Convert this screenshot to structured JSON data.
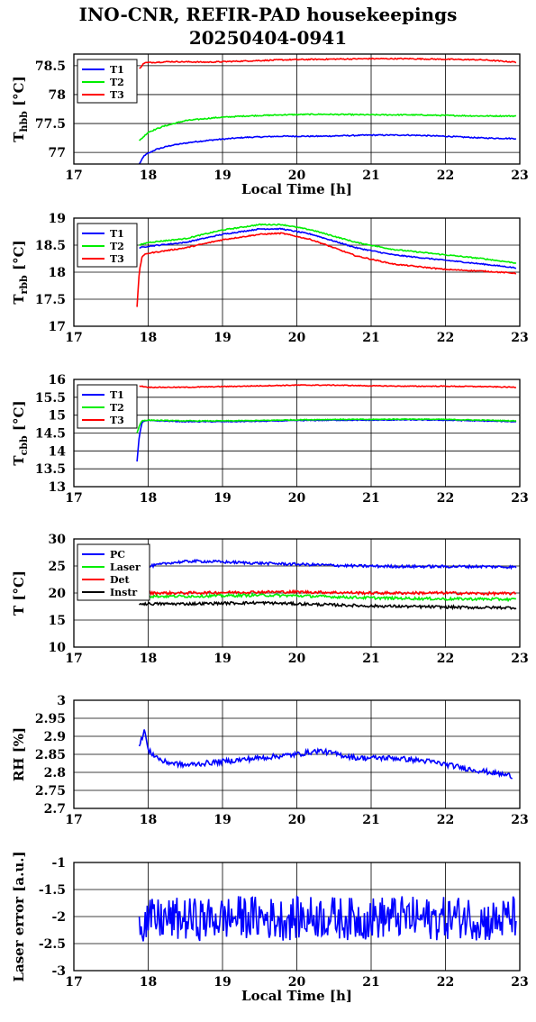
{
  "title": "INO-CNR, REFIR-PAD housekeepings",
  "subtitle": "20250404-0941",
  "colors": {
    "blue": "#0000ff",
    "green": "#00ee00",
    "red": "#ff0000",
    "black": "#000000"
  },
  "chart_data": [
    {
      "type": "line",
      "ylabel_main": "T",
      "ylabel_sub": "hbb",
      "ylabel_unit": "[°C]",
      "xlabel": "Local Time [h]",
      "xlim": [
        17,
        23
      ],
      "ylim": [
        76.8,
        78.7
      ],
      "xticks": [
        "17",
        "18",
        "19",
        "20",
        "21",
        "22",
        "23"
      ],
      "yticks": [
        {
          "v": 77,
          "label": "77"
        },
        {
          "v": 77.5,
          "label": "77.5"
        },
        {
          "v": 78,
          "label": "78"
        },
        {
          "v": 78.5,
          "label": "78.5"
        }
      ],
      "grid": true,
      "legend": "top-left",
      "noise": 0.02,
      "series": [
        {
          "name": "T1",
          "color": "#0000ff",
          "x": [
            17.88,
            17.95,
            18.1,
            18.3,
            18.6,
            18.9,
            19.3,
            19.8,
            20.3,
            21.0,
            21.5,
            22.0,
            22.5,
            22.95
          ],
          "y": [
            76.8,
            76.95,
            77.05,
            77.12,
            77.18,
            77.22,
            77.26,
            77.28,
            77.28,
            77.3,
            77.3,
            77.28,
            77.25,
            77.24
          ]
        },
        {
          "name": "T2",
          "color": "#00ee00",
          "x": [
            17.88,
            18.0,
            18.2,
            18.5,
            18.9,
            19.3,
            19.8,
            20.3,
            21.0,
            21.5,
            22.0,
            22.5,
            22.95
          ],
          "y": [
            77.2,
            77.35,
            77.45,
            77.55,
            77.6,
            77.63,
            77.65,
            77.66,
            77.65,
            77.65,
            77.64,
            77.63,
            77.63
          ]
        },
        {
          "name": "T3",
          "color": "#ff0000",
          "x": [
            17.88,
            17.95,
            18.3,
            18.8,
            19.3,
            19.8,
            20.3,
            21.0,
            21.5,
            22.0,
            22.5,
            22.95
          ],
          "y": [
            78.45,
            78.55,
            78.57,
            78.56,
            78.58,
            78.6,
            78.61,
            78.62,
            78.62,
            78.61,
            78.6,
            78.56
          ]
        }
      ]
    },
    {
      "type": "line",
      "ylabel_main": "T",
      "ylabel_sub": "rbb",
      "ylabel_unit": "[°C]",
      "xlabel": "",
      "xlim": [
        17,
        23
      ],
      "ylim": [
        17,
        19
      ],
      "xticks": [
        "17",
        "18",
        "19",
        "20",
        "21",
        "22",
        "23"
      ],
      "yticks": [
        {
          "v": 17,
          "label": "17"
        },
        {
          "v": 17.5,
          "label": "17.5"
        },
        {
          "v": 18,
          "label": "18"
        },
        {
          "v": 18.5,
          "label": "18.5"
        },
        {
          "v": 19,
          "label": "19"
        }
      ],
      "grid": true,
      "legend": "top-left",
      "noise": 0.02,
      "series": [
        {
          "name": "T1",
          "color": "#0000ff",
          "x": [
            17.88,
            18.0,
            18.5,
            19.0,
            19.5,
            19.8,
            20.2,
            20.8,
            21.3,
            22.0,
            22.5,
            22.95
          ],
          "y": [
            18.45,
            18.48,
            18.55,
            18.7,
            18.8,
            18.8,
            18.7,
            18.45,
            18.32,
            18.22,
            18.15,
            18.08
          ]
        },
        {
          "name": "T2",
          "color": "#00ee00",
          "x": [
            17.88,
            18.0,
            18.5,
            19.0,
            19.5,
            19.8,
            20.2,
            20.8,
            21.3,
            22.0,
            22.5,
            22.95
          ],
          "y": [
            18.5,
            18.55,
            18.62,
            18.78,
            18.88,
            18.88,
            18.78,
            18.55,
            18.42,
            18.32,
            18.25,
            18.17
          ]
        },
        {
          "name": "T3",
          "color": "#ff0000",
          "x": [
            17.85,
            17.88,
            17.92,
            18.0,
            18.5,
            19.0,
            19.5,
            19.8,
            20.2,
            20.8,
            21.3,
            22.0,
            22.5,
            22.95
          ],
          "y": [
            17.35,
            18.0,
            18.3,
            18.35,
            18.45,
            18.6,
            18.7,
            18.72,
            18.6,
            18.3,
            18.15,
            18.05,
            18.02,
            17.98
          ]
        }
      ]
    },
    {
      "type": "line",
      "ylabel_main": "T",
      "ylabel_sub": "cbb",
      "ylabel_unit": "[°C]",
      "xlabel": "",
      "xlim": [
        17,
        23
      ],
      "ylim": [
        13,
        16
      ],
      "xticks": [
        "17",
        "18",
        "19",
        "20",
        "21",
        "22",
        "23"
      ],
      "yticks": [
        {
          "v": 13,
          "label": "13"
        },
        {
          "v": 13.5,
          "label": "13.5"
        },
        {
          "v": 14,
          "label": "14"
        },
        {
          "v": 14.5,
          "label": "14.5"
        },
        {
          "v": 15,
          "label": "15"
        },
        {
          "v": 15.5,
          "label": "15.5"
        },
        {
          "v": 16,
          "label": "16"
        }
      ],
      "grid": true,
      "legend": "top-left",
      "noise": 0.015,
      "series": [
        {
          "name": "T1",
          "color": "#0000ff",
          "x": [
            17.85,
            17.88,
            17.92,
            18.0,
            18.5,
            19.0,
            19.5,
            20.0,
            20.5,
            21.0,
            21.5,
            22.0,
            22.5,
            22.95
          ],
          "y": [
            13.7,
            14.4,
            14.82,
            14.85,
            14.82,
            14.82,
            14.83,
            14.85,
            14.86,
            14.86,
            14.87,
            14.86,
            14.84,
            14.82
          ]
        },
        {
          "name": "T2",
          "color": "#00ee00",
          "x": [
            17.85,
            17.88,
            17.92,
            18.0,
            18.5,
            19.0,
            19.5,
            20.0,
            20.5,
            21.0,
            21.5,
            22.0,
            22.5,
            22.95
          ],
          "y": [
            14.5,
            14.7,
            14.85,
            14.86,
            14.84,
            14.84,
            14.85,
            14.87,
            14.88,
            14.88,
            14.89,
            14.88,
            14.86,
            14.84
          ]
        },
        {
          "name": "T3",
          "color": "#ff0000",
          "x": [
            17.88,
            18.0,
            18.5,
            19.0,
            19.5,
            20.0,
            20.5,
            21.0,
            21.5,
            22.0,
            22.5,
            22.95
          ],
          "y": [
            15.82,
            15.78,
            15.78,
            15.8,
            15.82,
            15.84,
            15.84,
            15.82,
            15.81,
            15.81,
            15.8,
            15.78
          ]
        }
      ]
    },
    {
      "type": "line",
      "ylabel_main": "T [°C]",
      "ylabel_sub": "",
      "ylabel_unit": "",
      "xlabel": "",
      "xlim": [
        17,
        23
      ],
      "ylim": [
        10,
        30
      ],
      "xticks": [
        "17",
        "18",
        "19",
        "20",
        "21",
        "22",
        "23"
      ],
      "yticks": [
        {
          "v": 10,
          "label": "10"
        },
        {
          "v": 15,
          "label": "15"
        },
        {
          "v": 20,
          "label": "20"
        },
        {
          "v": 25,
          "label": "25"
        },
        {
          "v": 30,
          "label": "30"
        }
      ],
      "grid": true,
      "legend": "top-left",
      "noise": 0.05,
      "series": [
        {
          "name": "PC",
          "color": "#0000ff",
          "x": [
            17.88,
            18.0,
            18.3,
            18.6,
            18.9,
            19.3,
            19.8,
            20.3,
            20.8,
            21.5,
            22.0,
            22.5,
            22.95
          ],
          "y": [
            24.5,
            24.9,
            25.6,
            25.9,
            25.8,
            25.6,
            25.4,
            25.2,
            25.0,
            24.9,
            24.9,
            24.9,
            24.8
          ]
        },
        {
          "name": "Laser",
          "color": "#00ee00",
          "x": [
            17.88,
            18.5,
            19.0,
            19.5,
            20.0,
            20.5,
            21.0,
            21.5,
            22.0,
            22.5,
            22.95
          ],
          "y": [
            19.4,
            19.4,
            19.5,
            19.6,
            19.5,
            19.3,
            19.1,
            19.0,
            18.9,
            18.9,
            18.8
          ]
        },
        {
          "name": "Det",
          "color": "#ff0000",
          "x": [
            17.88,
            18.5,
            19.0,
            19.5,
            20.0,
            20.5,
            21.0,
            21.5,
            22.0,
            22.5,
            22.95
          ],
          "y": [
            20.0,
            20.0,
            20.1,
            20.2,
            20.2,
            20.1,
            20.0,
            20.0,
            20.0,
            19.9,
            19.9
          ]
        },
        {
          "name": "Instr",
          "color": "#000000",
          "x": [
            17.88,
            18.5,
            19.0,
            19.5,
            20.0,
            20.5,
            21.0,
            21.5,
            22.0,
            22.5,
            22.95
          ],
          "y": [
            18.0,
            18.0,
            18.1,
            18.2,
            18.0,
            17.8,
            17.6,
            17.5,
            17.4,
            17.3,
            17.3
          ]
        }
      ]
    },
    {
      "type": "line",
      "ylabel_main": "RH [%]",
      "ylabel_sub": "",
      "ylabel_unit": "",
      "xlabel": "",
      "xlim": [
        17,
        23
      ],
      "ylim": [
        2.7,
        3.0
      ],
      "xticks": [
        "17",
        "18",
        "19",
        "20",
        "21",
        "22",
        "23"
      ],
      "yticks": [
        {
          "v": 2.7,
          "label": "2.7"
        },
        {
          "v": 2.75,
          "label": "2.75"
        },
        {
          "v": 2.8,
          "label": "2.8"
        },
        {
          "v": 2.85,
          "label": "2.85"
        },
        {
          "v": 2.9,
          "label": "2.9"
        },
        {
          "v": 2.95,
          "label": "2.95"
        },
        {
          "v": 3.0,
          "label": "3"
        }
      ],
      "grid": true,
      "legend": "none",
      "noise": 0.03,
      "series": [
        {
          "name": "",
          "color": "#0000ff",
          "x": [
            17.88,
            17.95,
            18.0,
            18.2,
            18.5,
            19.0,
            19.5,
            20.0,
            20.3,
            20.8,
            21.3,
            21.8,
            22.3,
            22.6,
            22.9
          ],
          "y": [
            2.87,
            2.92,
            2.86,
            2.83,
            2.82,
            2.83,
            2.84,
            2.85,
            2.86,
            2.84,
            2.84,
            2.83,
            2.81,
            2.8,
            2.79
          ]
        }
      ]
    },
    {
      "type": "line",
      "ylabel_main": "Laser error [a.u.]",
      "ylabel_sub": "",
      "ylabel_unit": "",
      "xlabel": "Local Time [h]",
      "xlim": [
        17,
        23
      ],
      "ylim": [
        -3,
        -1
      ],
      "xticks": [
        "17",
        "18",
        "19",
        "20",
        "21",
        "22",
        "23"
      ],
      "yticks": [
        {
          "v": -3,
          "label": "-3"
        },
        {
          "v": -2.5,
          "label": "-2.5"
        },
        {
          "v": -2,
          "label": "-2"
        },
        {
          "v": -1.5,
          "label": "-1.5"
        },
        {
          "v": -1,
          "label": "-1"
        }
      ],
      "grid": true,
      "legend": "none",
      "noise": 0.25,
      "series": [
        {
          "name": "",
          "color": "#0000ff",
          "x": [
            17.88,
            18.2,
            18.8,
            19.3,
            19.8,
            20.3,
            20.8,
            21.3,
            21.8,
            22.3,
            22.5,
            22.7,
            22.95
          ],
          "y": [
            -2.1,
            -2.05,
            -2.05,
            -2.0,
            -2.05,
            -2.0,
            -2.05,
            -2.0,
            -2.05,
            -2.0,
            -2.08,
            -2.08,
            -2.0
          ]
        }
      ]
    }
  ]
}
